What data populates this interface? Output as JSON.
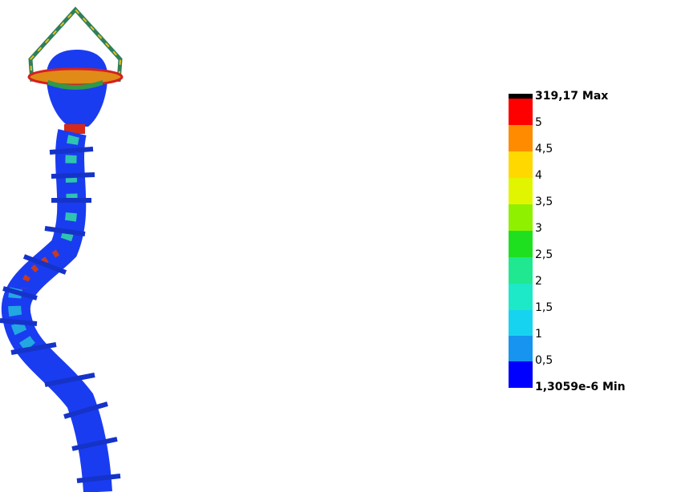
{
  "legend": {
    "labels": [
      "319,17 Max",
      "5",
      "4,5",
      "4",
      "3,5",
      "3",
      "2,5",
      "2",
      "1,5",
      "1",
      "0,5",
      "1,3059e-6 Min"
    ]
  }
}
